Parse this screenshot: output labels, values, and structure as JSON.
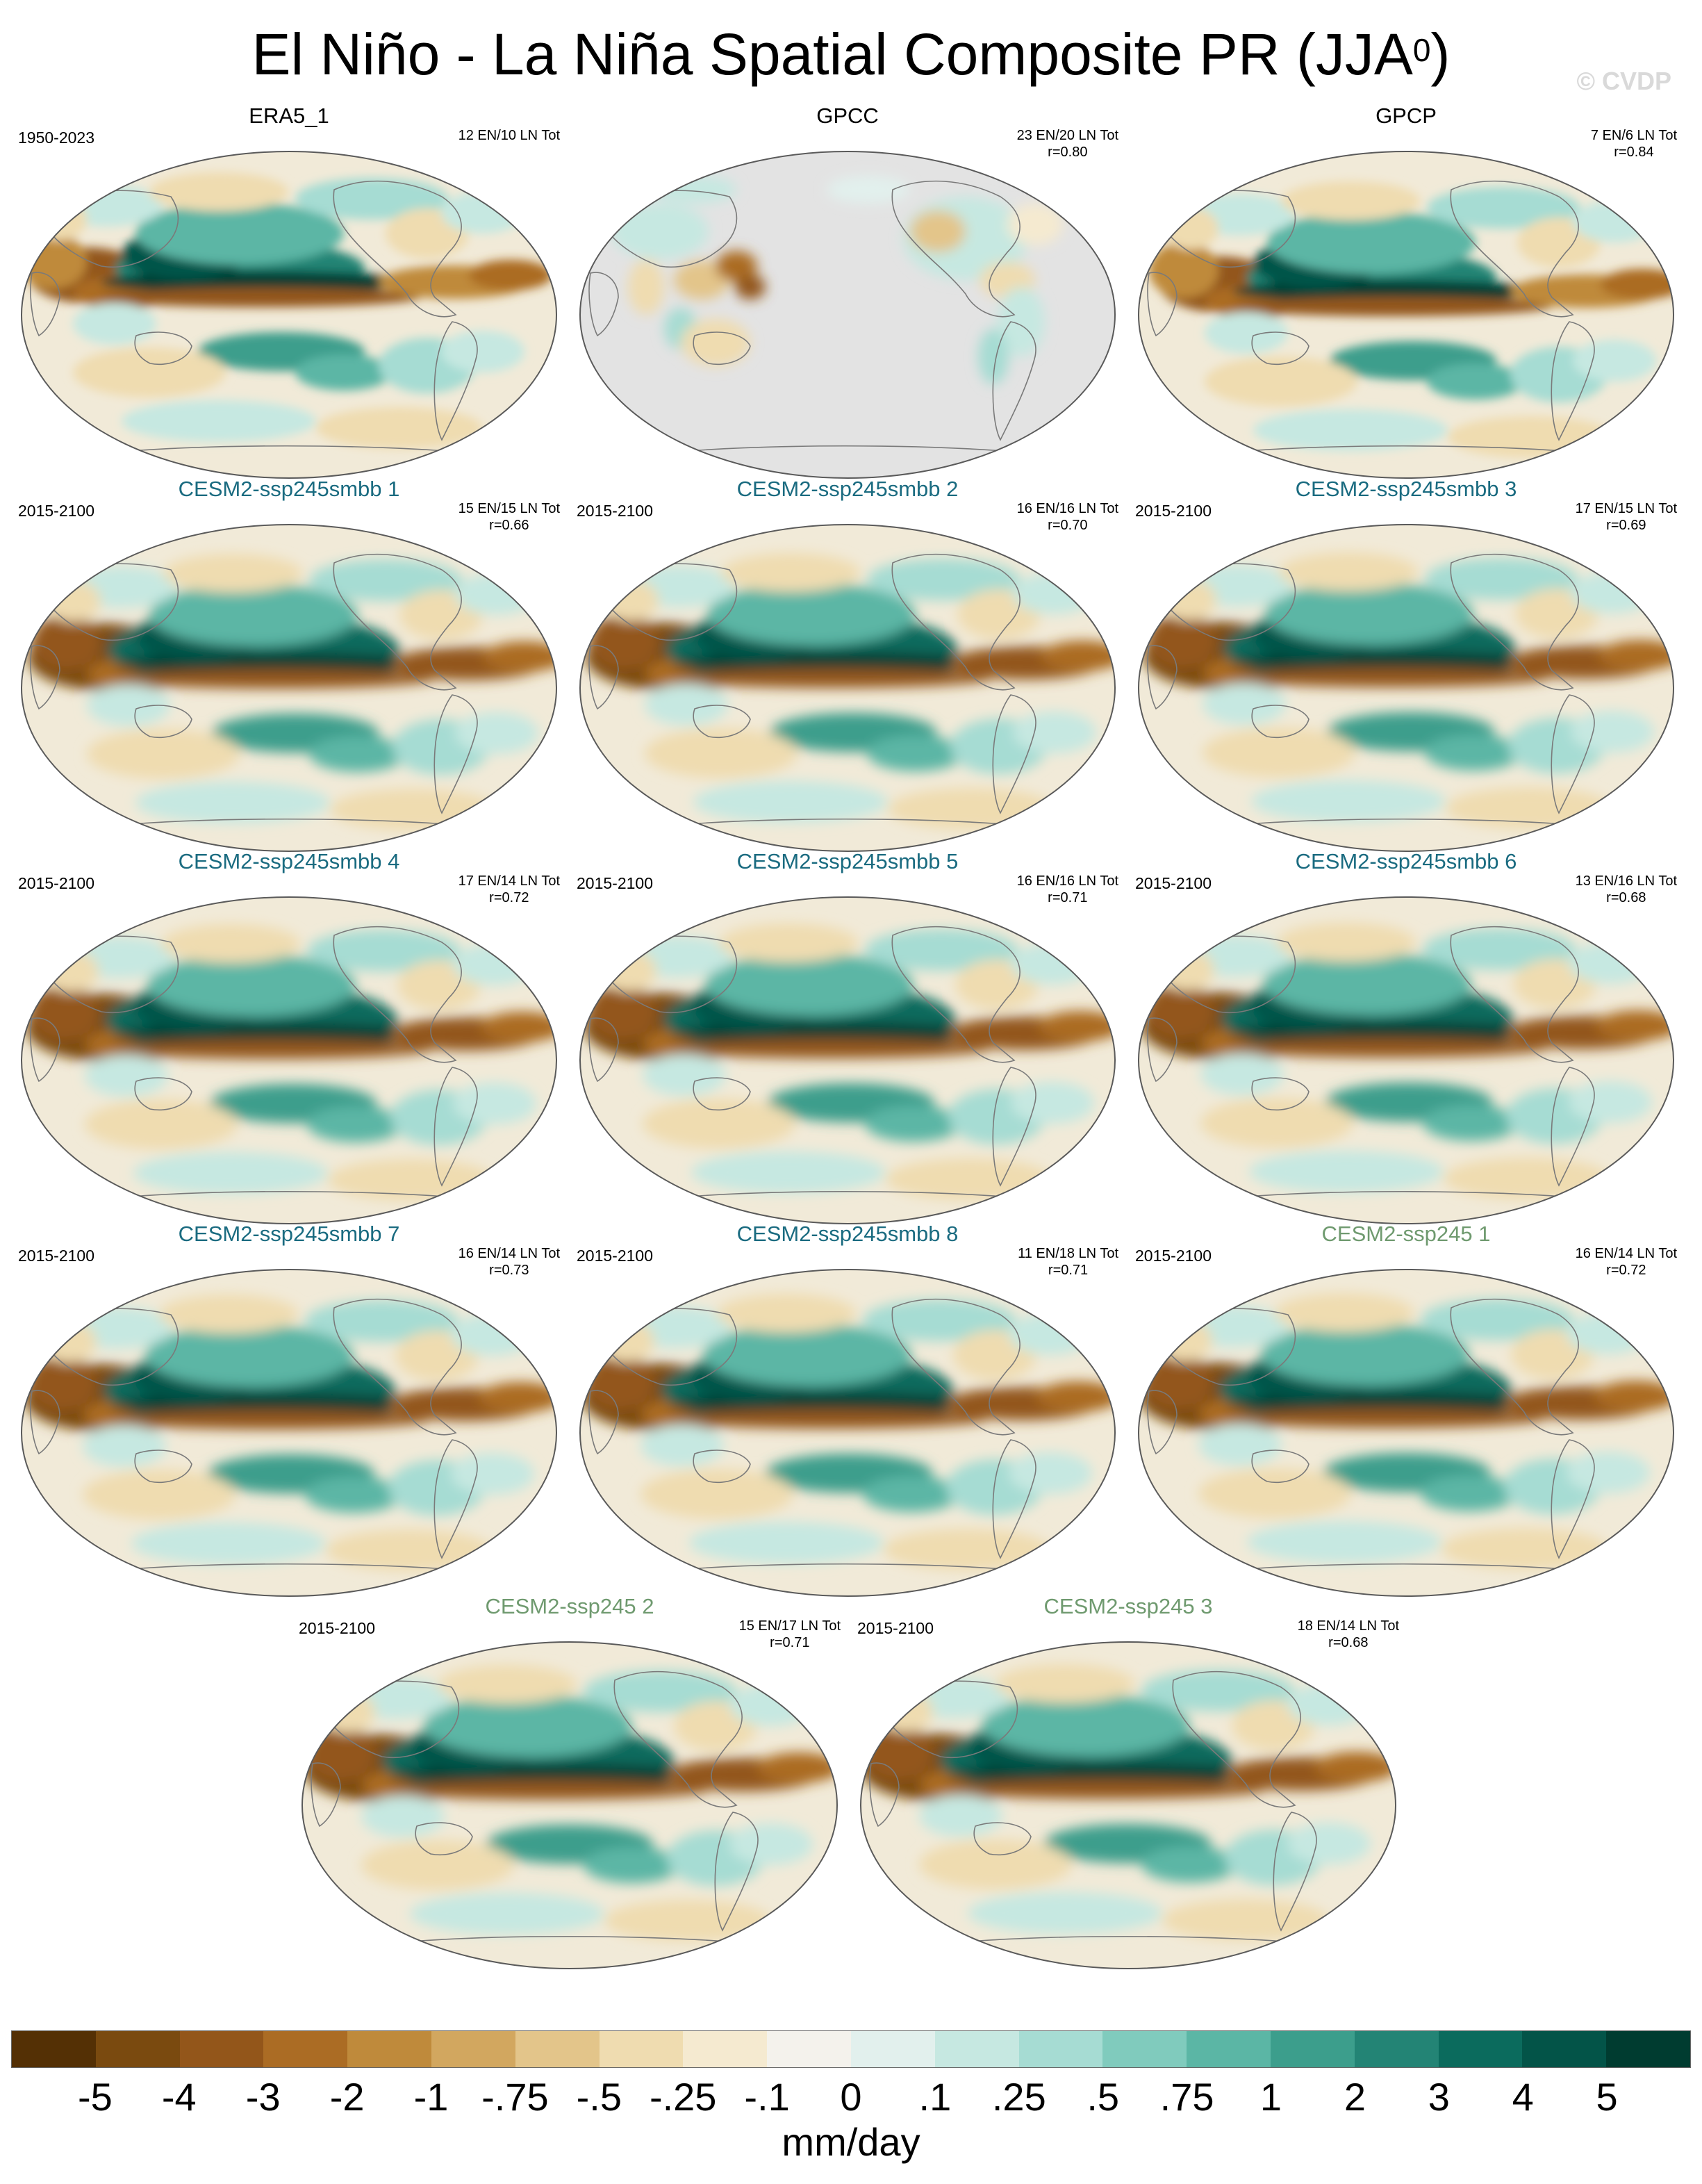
{
  "title": "El Niño - La Niña Spatial Composite PR (JJA",
  "title_sup": "0",
  "title_close": ")",
  "watermark": "© CVDP",
  "panels": [
    {
      "title": "ERA5_1",
      "title_color": "#000000",
      "period": "1950-2023",
      "count": "12 EN/10 LN Tot",
      "r": "",
      "kind": "obs"
    },
    {
      "title": "GPCC",
      "title_color": "#000000",
      "period": "",
      "count": "23 EN/20 LN Tot",
      "r": "r=0.80",
      "kind": "land"
    },
    {
      "title": "GPCP",
      "title_color": "#000000",
      "period": "",
      "count": "7 EN/6 LN Tot",
      "r": "r=0.84",
      "kind": "obs"
    },
    {
      "title": "CESM2-ssp245smbb 1",
      "title_color": "#1a6b80",
      "period": "2015-2100",
      "count": "15 EN/15 LN Tot",
      "r": "r=0.66",
      "kind": "model"
    },
    {
      "title": "CESM2-ssp245smbb 2",
      "title_color": "#1a6b80",
      "period": "2015-2100",
      "count": "16 EN/16 LN Tot",
      "r": "r=0.70",
      "kind": "model"
    },
    {
      "title": "CESM2-ssp245smbb 3",
      "title_color": "#1a6b80",
      "period": "2015-2100",
      "count": "17 EN/15 LN Tot",
      "r": "r=0.69",
      "kind": "model"
    },
    {
      "title": "CESM2-ssp245smbb 4",
      "title_color": "#1a6b80",
      "period": "2015-2100",
      "count": "17 EN/14 LN Tot",
      "r": "r=0.72",
      "kind": "model"
    },
    {
      "title": "CESM2-ssp245smbb 5",
      "title_color": "#1a6b80",
      "period": "2015-2100",
      "count": "16 EN/16 LN Tot",
      "r": "r=0.71",
      "kind": "model"
    },
    {
      "title": "CESM2-ssp245smbb 6",
      "title_color": "#1a6b80",
      "period": "2015-2100",
      "count": "13 EN/16 LN Tot",
      "r": "r=0.68",
      "kind": "model"
    },
    {
      "title": "CESM2-ssp245smbb 7",
      "title_color": "#1a6b80",
      "period": "2015-2100",
      "count": "16 EN/14 LN Tot",
      "r": "r=0.73",
      "kind": "model"
    },
    {
      "title": "CESM2-ssp245smbb 8",
      "title_color": "#1a6b80",
      "period": "2015-2100",
      "count": "11 EN/18 LN Tot",
      "r": "r=0.71",
      "kind": "model"
    },
    {
      "title": "CESM2-ssp245 1",
      "title_color": "#6f9a6f",
      "period": "2015-2100",
      "count": "16 EN/14 LN Tot",
      "r": "r=0.72",
      "kind": "model"
    },
    {
      "title": "CESM2-ssp245 2",
      "title_color": "#6f9a6f",
      "period": "2015-2100",
      "count": "15 EN/17 LN Tot",
      "r": "r=0.71",
      "kind": "model"
    },
    {
      "title": "CESM2-ssp245 3",
      "title_color": "#6f9a6f",
      "period": "2015-2100",
      "count": "18 EN/14 LN Tot",
      "r": "r=0.68",
      "kind": "model"
    }
  ],
  "colorbar": {
    "colors": [
      "#543005",
      "#7a4a0f",
      "#93561a",
      "#ab6c24",
      "#bf8a3b",
      "#d2a75f",
      "#e3c58a",
      "#efdcb0",
      "#f5ead0",
      "#f4f2ec",
      "#e2f0ed",
      "#c6e8e1",
      "#a6dcd3",
      "#80cbbd",
      "#5bb6a5",
      "#3c9e8c",
      "#238475",
      "#0b6b5d",
      "#035448",
      "#003c30"
    ],
    "tick_labels": [
      "-5",
      "-4",
      "-3",
      "-2",
      "-1",
      "-.75",
      "-.5",
      "-.25",
      "-.1",
      "0",
      ".1",
      ".25",
      ".5",
      ".75",
      "1",
      "2",
      "3",
      "4",
      "5"
    ],
    "units": "mm/day"
  }
}
